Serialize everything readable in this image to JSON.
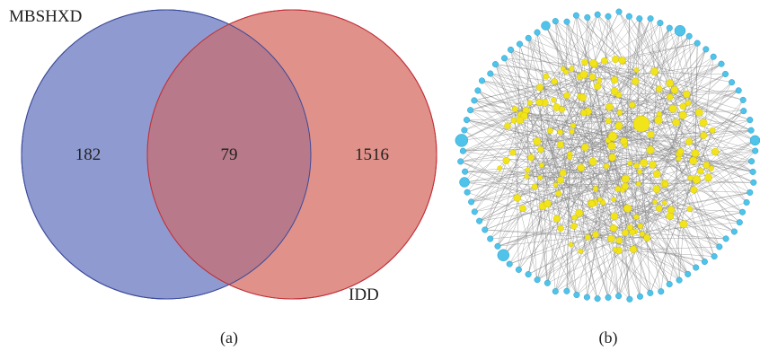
{
  "venn": {
    "set_a_label": "MBSHXD",
    "set_b_label": "IDD",
    "only_a": "182",
    "intersection": "79",
    "only_b": "1516",
    "color_a": "#8f9bd0",
    "color_b": "#e0918a",
    "stroke_a": "#3b4a9a",
    "stroke_b": "#c0303a",
    "overlap_color": "#b87a8a"
  },
  "network": {
    "target_color": "#f2e41a",
    "compound_color": "#4fc3ea",
    "edge_color": "#808080"
  },
  "captions": {
    "a": "(a)",
    "b": "(b)"
  }
}
